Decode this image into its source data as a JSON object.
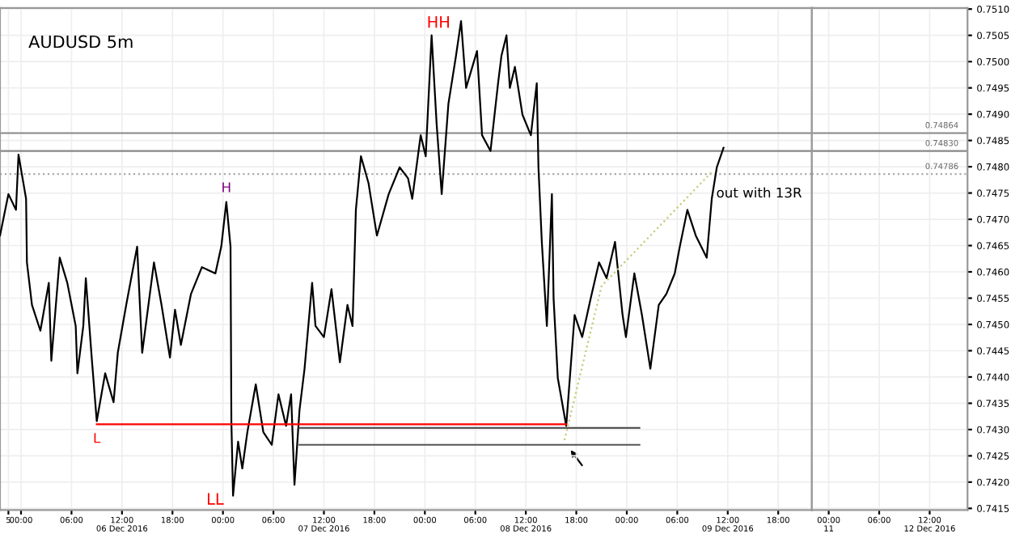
{
  "chart_data": [
    {
      "type": "line",
      "title": "AUDUSD 5m",
      "xlim": [
        "2016-12-05T21:30",
        "2016-12-09T22:00"
      ],
      "ylim": [
        0.74147,
        0.75102
      ],
      "tick_labels": "x",
      "xticks": [
        {
          "value": "2016-12-05T22:30",
          "label": "5"
        },
        {
          "value": "2016-12-06T00:00",
          "label": "00:00"
        },
        {
          "value": "2016-12-06T06:00",
          "label": "06:00"
        },
        {
          "value": "2016-12-06T12:00",
          "label": "12:00\n06 Dec 2016"
        },
        {
          "value": "2016-12-06T18:00",
          "label": "18:00"
        },
        {
          "value": "2016-12-07T00:00",
          "label": "00:00"
        },
        {
          "value": "2016-12-07T06:00",
          "label": "06:00"
        },
        {
          "value": "2016-12-07T12:00",
          "label": "12:00\n07 Dec 2016"
        },
        {
          "value": "2016-12-07T18:00",
          "label": "18:00"
        },
        {
          "value": "2016-12-08T00:00",
          "label": "00:00"
        },
        {
          "value": "2016-12-08T06:00",
          "label": "06:00"
        },
        {
          "value": "2016-12-08T12:00",
          "label": "12:00\n08 Dec 2016"
        },
        {
          "value": "2016-12-08T18:00",
          "label": "18:00"
        },
        {
          "value": "2016-12-09T00:00",
          "label": "00:00"
        },
        {
          "value": "2016-12-09T06:00",
          "label": "06:00"
        },
        {
          "value": "2016-12-09T12:00",
          "label": "12:00\n09 Dec 2016"
        },
        {
          "value": "2016-12-09T18:00",
          "label": "18:00"
        }
      ],
      "yticks": [
        0.7415,
        0.742,
        0.7425,
        0.743,
        0.7435,
        0.744,
        0.7445,
        0.745,
        0.7455,
        0.746,
        0.7465,
        0.747,
        0.7475,
        0.748,
        0.7485,
        0.749,
        0.7495,
        0.75,
        0.7505,
        0.751
      ],
      "grid": true,
      "marker": "none",
      "series": [
        {
          "color": "#000000",
          "line_style": "solid",
          "x": [
            "2016-12-05T21:30",
            "2016-12-05T22:30",
            "2016-12-05T23:24",
            "2016-12-05T23:42",
            "2016-12-06T00:36",
            "2016-12-06T00:42",
            "2016-12-06T01:18",
            "2016-12-06T02:18",
            "2016-12-06T03:18",
            "2016-12-06T03:36",
            "2016-12-06T04:36",
            "2016-12-06T05:30",
            "2016-12-06T06:30",
            "2016-12-06T06:42",
            "2016-12-06T07:24",
            "2016-12-06T07:42",
            "2016-12-06T08:24",
            "2016-12-06T09:00",
            "2016-12-06T10:00",
            "2016-12-06T11:00",
            "2016-12-06T11:30",
            "2016-12-06T12:30",
            "2016-12-06T13:48",
            "2016-12-06T14:24",
            "2016-12-06T15:48",
            "2016-12-06T16:42",
            "2016-12-06T17:42",
            "2016-12-06T18:18",
            "2016-12-06T19:00",
            "2016-12-06T20:12",
            "2016-12-06T21:30",
            "2016-12-06T23:06",
            "2016-12-06T23:48",
            "2016-12-07T00:24",
            "2016-12-07T00:54",
            "2016-12-07T01:00",
            "2016-12-07T01:12",
            "2016-12-07T01:48",
            "2016-12-07T02:18",
            "2016-12-07T02:54",
            "2016-12-07T03:54",
            "2016-12-07T04:48",
            "2016-12-07T05:48",
            "2016-12-07T06:36",
            "2016-12-07T07:30",
            "2016-12-07T08:06",
            "2016-12-07T08:30",
            "2016-12-07T09:06",
            "2016-12-07T09:42",
            "2016-12-07T10:36",
            "2016-12-07T11:00",
            "2016-12-07T12:00",
            "2016-12-07T12:54",
            "2016-12-07T13:54",
            "2016-12-07T14:48",
            "2016-12-07T15:24",
            "2016-12-07T15:48",
            "2016-12-07T16:24",
            "2016-12-07T17:18",
            "2016-12-07T18:18",
            "2016-12-07T19:42",
            "2016-12-07T21:00",
            "2016-12-07T22:00",
            "2016-12-07T22:30",
            "2016-12-07T23:30",
            "2016-12-08T00:06",
            "2016-12-08T00:48",
            "2016-12-08T01:24",
            "2016-12-08T02:00",
            "2016-12-08T02:48",
            "2016-12-08T03:42",
            "2016-12-08T04:18",
            "2016-12-08T04:54",
            "2016-12-08T06:12",
            "2016-12-08T06:48",
            "2016-12-08T07:48",
            "2016-12-08T08:42",
            "2016-12-08T09:06",
            "2016-12-08T09:42",
            "2016-12-08T10:06",
            "2016-12-08T10:42",
            "2016-12-08T11:36",
            "2016-12-08T12:36",
            "2016-12-08T13:18",
            "2016-12-08T13:30",
            "2016-12-08T13:54",
            "2016-12-08T14:30",
            "2016-12-08T15:06",
            "2016-12-08T15:18",
            "2016-12-08T15:48",
            "2016-12-08T16:48",
            "2016-12-08T17:48",
            "2016-12-08T18:42",
            "2016-12-08T19:42",
            "2016-12-08T20:42",
            "2016-12-08T21:36",
            "2016-12-08T22:36",
            "2016-12-08T23:30",
            "2016-12-08T23:54",
            "2016-12-09T00:54",
            "2016-12-09T01:48",
            "2016-12-09T02:48",
            "2016-12-09T03:48",
            "2016-12-09T04:42",
            "2016-12-09T05:42",
            "2016-12-09T06:18",
            "2016-12-09T07:12",
            "2016-12-09T08:12",
            "2016-12-09T09:30",
            "2016-12-09T10:06",
            "2016-12-09T10:42",
            "2016-12-09T11:30"
          ],
          "values": [
            0.74669,
            0.74748,
            0.74718,
            0.74823,
            0.74739,
            0.74618,
            0.74537,
            0.74488,
            0.74579,
            0.74431,
            0.74627,
            0.74579,
            0.74497,
            0.74407,
            0.74497,
            0.74588,
            0.74437,
            0.74316,
            0.74407,
            0.74352,
            0.74446,
            0.74537,
            0.74648,
            0.74446,
            0.74618,
            0.74537,
            0.74437,
            0.74528,
            0.74461,
            0.74558,
            0.74609,
            0.74597,
            0.74648,
            0.74733,
            0.74648,
            0.74316,
            0.74174,
            0.74277,
            0.74226,
            0.74295,
            0.74386,
            0.74295,
            0.74271,
            0.74367,
            0.74307,
            0.74367,
            0.74195,
            0.74337,
            0.74416,
            0.74579,
            0.74497,
            0.74476,
            0.74567,
            0.74428,
            0.74537,
            0.74497,
            0.74718,
            0.7482,
            0.74769,
            0.74669,
            0.74748,
            0.74799,
            0.74778,
            0.74739,
            0.7486,
            0.7482,
            0.7505,
            0.74881,
            0.74748,
            0.7492,
            0.75011,
            0.75077,
            0.7495,
            0.7502,
            0.7486,
            0.7483,
            0.74959,
            0.75011,
            0.7505,
            0.7495,
            0.7499,
            0.74899,
            0.7486,
            0.74959,
            0.74799,
            0.74657,
            0.74497,
            0.74748,
            0.74549,
            0.74398,
            0.74307,
            0.74518,
            0.74476,
            0.74549,
            0.74618,
            0.74588,
            0.74657,
            0.74518,
            0.74476,
            0.74597,
            0.74518,
            0.74416,
            0.74537,
            0.74558,
            0.74597,
            0.74648,
            0.74718,
            0.74669,
            0.74627,
            0.74739,
            0.74799,
            0.74836
          ]
        },
        {
          "color": "#ff0000",
          "line_style": "solid",
          "x": [
            "2016-12-06T09:00",
            "2016-12-08T16:48"
          ],
          "values": [
            0.7431,
            0.7431
          ]
        },
        {
          "color": "#555555",
          "line_style": "solid",
          "x": [
            "2016-12-07T09:06",
            "2016-12-09T01:30"
          ],
          "values": [
            0.74303,
            0.74303
          ]
        },
        {
          "color": "#555555",
          "line_style": "solid",
          "x": [
            "2016-12-07T09:06",
            "2016-12-09T01:30"
          ],
          "values": [
            0.74271,
            0.74271
          ]
        },
        {
          "color": "#c8c87a",
          "line_style": "dotted",
          "x": [
            "2016-12-08T16:36",
            "2016-12-08T21:00",
            "2016-12-09T10:06"
          ],
          "values": [
            0.7428,
            0.74573,
            0.7479
          ]
        }
      ],
      "ref_lines": [
        {
          "axis": "y",
          "value": 0.74864,
          "color": "#888888",
          "line_style": "solid"
        },
        {
          "axis": "y",
          "value": 0.7483,
          "color": "#888888",
          "line_style": "solid"
        },
        {
          "axis": "y",
          "value": 0.74786,
          "color": "#aaaaaa",
          "line_style": "dotted"
        }
      ],
      "annotations": [
        {
          "text": "HH",
          "x": "2016-12-08T04:18",
          "y": 0.75077
        },
        {
          "text": "H",
          "x": "2016-12-07T00:24",
          "y": 0.74733
        },
        {
          "text": "L",
          "x": "2016-12-06T09:00",
          "y": 0.74316
        },
        {
          "text": "LL",
          "x": "2016-12-07T01:12",
          "y": 0.74174
        },
        "out with 13R"
      ]
    },
    {
      "type": "line",
      "xlim": [
        "2016-12-11T22:00",
        "2016-12-12T16:30"
      ],
      "ylim": [
        0.74147,
        0.75102
      ],
      "xticks": [
        {
          "value": "2016-12-12T00:00",
          "label": "00:00\n11"
        },
        {
          "value": "2016-12-12T06:00",
          "label": "06:00"
        },
        {
          "value": "2016-12-12T12:00",
          "label": "12:00\n12 Dec 2016"
        }
      ],
      "yticks": [
        {
          "value": 0.7415,
          "label": "0.7415"
        },
        {
          "value": 0.742,
          "label": "0.7420"
        },
        {
          "value": 0.7425,
          "label": "0.7425"
        },
        {
          "value": 0.743,
          "label": "0.7430"
        },
        {
          "value": 0.7435,
          "label": "0.7435"
        },
        {
          "value": 0.744,
          "label": "0.7440"
        },
        {
          "value": 0.7445,
          "label": "0.7445"
        },
        {
          "value": 0.745,
          "label": "0.7450"
        },
        {
          "value": 0.7455,
          "label": "0.7455"
        },
        {
          "value": 0.746,
          "label": "0.7460"
        },
        {
          "value": 0.7465,
          "label": "0.7465"
        },
        {
          "value": 0.747,
          "label": "0.7470"
        },
        {
          "value": 0.7475,
          "label": "0.7475"
        },
        {
          "value": 0.748,
          "label": "0.7480"
        },
        {
          "value": 0.7485,
          "label": "0.7485"
        },
        {
          "value": 0.749,
          "label": "0.7490"
        },
        {
          "value": 0.7495,
          "label": "0.7495"
        },
        {
          "value": 0.75,
          "label": "0.7500"
        },
        {
          "value": 0.7505,
          "label": "0.7505"
        },
        {
          "value": 0.751,
          "label": "0.7510"
        }
      ],
      "grid": true,
      "ref_lines": [
        {
          "axis": "y",
          "value": 0.74864,
          "label": "0.74864",
          "color": "#888888",
          "line_style": "solid"
        },
        {
          "axis": "y",
          "value": 0.7483,
          "label": "0.74830",
          "color": "#888888",
          "line_style": "solid"
        },
        {
          "axis": "y",
          "value": 0.74786,
          "label": "0.74786",
          "color": "#aaaaaa",
          "line_style": "dotted"
        }
      ]
    }
  ]
}
